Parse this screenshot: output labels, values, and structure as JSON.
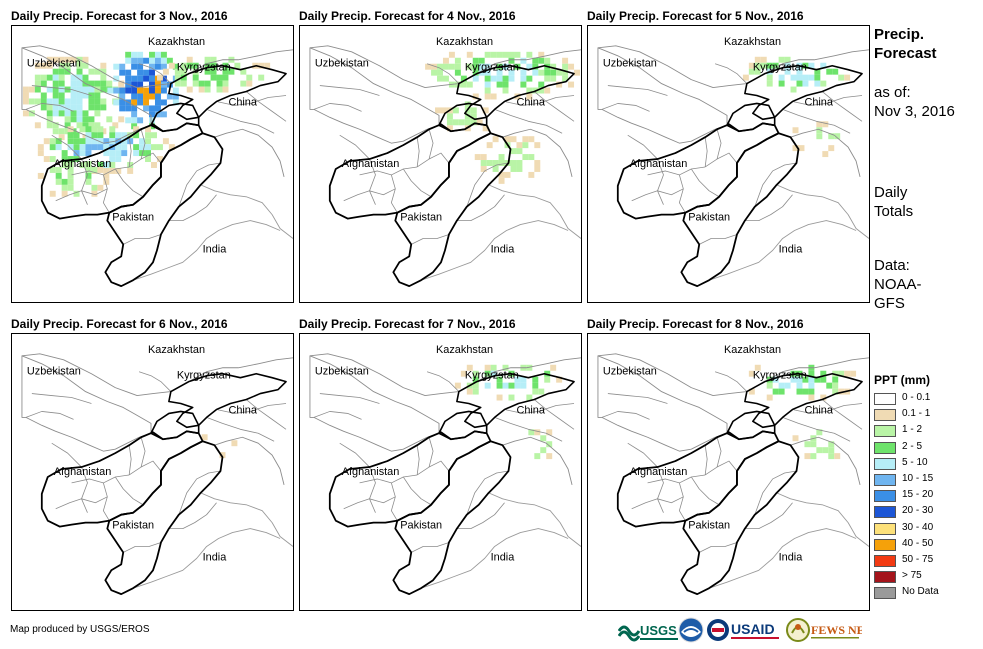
{
  "panels": [
    {
      "title": "Daily Precip. Forecast for 3 Nov., 2016",
      "intensity": 3
    },
    {
      "title": "Daily Precip. Forecast for 4 Nov., 2016",
      "intensity": 2
    },
    {
      "title": "Daily Precip. Forecast for 5 Nov., 2016",
      "intensity": 1
    },
    {
      "title": "Daily Precip. Forecast for 6 Nov., 2016",
      "intensity": 0
    },
    {
      "title": "Daily Precip. Forecast for 7 Nov., 2016",
      "intensity": 1
    },
    {
      "title": "Daily Precip. Forecast for 8 Nov., 2016",
      "intensity": 1
    }
  ],
  "labels": {
    "kazakhstan": "Kazakhstan",
    "uzbekistan": "Uzbekistan",
    "kyrgyzstan": "Kyrgyzstan",
    "china": "China",
    "afghanistan": "Afghanistan",
    "pakistan": "Pakistan",
    "india": "India"
  },
  "side": {
    "title_line1": "Precip.",
    "title_line2": "Forecast",
    "asof_line1": "as of:",
    "asof_line2": "Nov 3, 2016",
    "totals_line1": "Daily",
    "totals_line2": "Totals",
    "data_line1": "Data:",
    "data_line2": "NOAA-",
    "data_line3": "GFS"
  },
  "legend": {
    "title": "PPT (mm)",
    "items": [
      {
        "label": "0 - 0.1",
        "color": "#ffffff"
      },
      {
        "label": "0.1 - 1",
        "color": "#f0dbb4"
      },
      {
        "label": "1 - 2",
        "color": "#b9f4a6"
      },
      {
        "label": "2 - 5",
        "color": "#6ee36b"
      },
      {
        "label": "5 - 10",
        "color": "#b6eef7"
      },
      {
        "label": "10 - 15",
        "color": "#6fb5f0"
      },
      {
        "label": "15 - 20",
        "color": "#3a8fe6"
      },
      {
        "label": "20 - 30",
        "color": "#1c56d6"
      },
      {
        "label": "30 - 40",
        "color": "#fde17a"
      },
      {
        "label": "40 - 50",
        "color": "#f5a10a"
      },
      {
        "label": "50 - 75",
        "color": "#f23a12"
      },
      {
        "label": "> 75",
        "color": "#a4141b"
      },
      {
        "label": "No Data",
        "color": "#9a9a9a"
      }
    ]
  },
  "footer": {
    "credit": "Map produced by USGS/EROS",
    "logo_usgs": "USGS",
    "logo_usaid": "USAID",
    "logo_fews": "FEWS NET"
  }
}
